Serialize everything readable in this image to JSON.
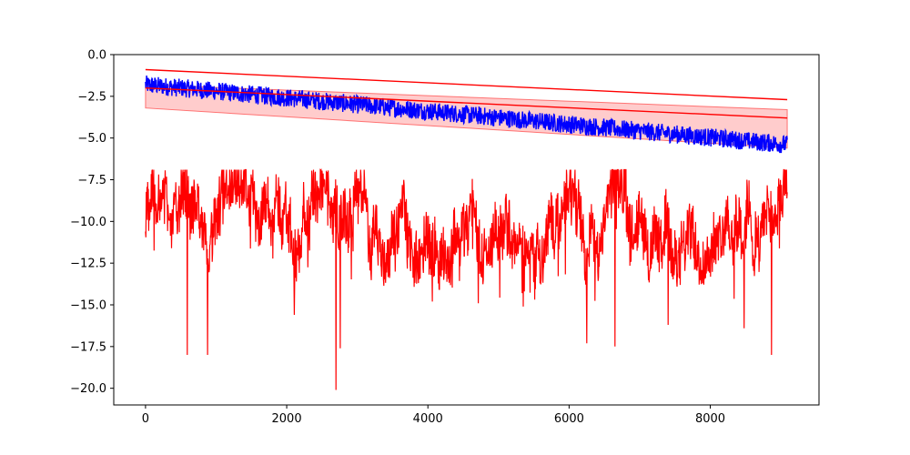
{
  "chart_data": {
    "type": "line",
    "title": "",
    "xlabel": "",
    "ylabel": "",
    "xlim": [
      -450,
      9540
    ],
    "ylim": [
      -21,
      0
    ],
    "x_ticks": [
      0,
      2000,
      4000,
      6000,
      8000
    ],
    "y_ticks": [
      0.0,
      -2.5,
      -5.0,
      -7.5,
      -10.0,
      -12.5,
      -15.0,
      -17.5,
      -20.0
    ],
    "x_tick_labels": [
      "0",
      "2000",
      "4000",
      "6000",
      "8000"
    ],
    "y_tick_labels": [
      "0.0",
      "−2.5",
      "−5.0",
      "−7.5",
      "−10.0",
      "−12.5",
      "−15.0",
      "−17.5",
      "−20.0"
    ],
    "grid": false,
    "series": [
      {
        "kind": "noisy-line",
        "color": "#0000ff",
        "n_points": 9090,
        "x_start": 0,
        "x_end": 9090,
        "trend_start": -1.8,
        "trend_end": -5.4,
        "noise_amplitude": 0.55
      },
      {
        "kind": "noisy-line",
        "color": "#ff0000",
        "n_points": 9090,
        "x_start": 0,
        "x_end": 9090,
        "baseline": -10.0,
        "range": [
          -13.0,
          -7.0
        ],
        "spikes": [
          {
            "x": 590,
            "y": -18.0
          },
          {
            "x": 880,
            "y": -18.0
          },
          {
            "x": 2700,
            "y": -20.1
          },
          {
            "x": 2760,
            "y": -17.6
          },
          {
            "x": 6250,
            "y": -17.3
          },
          {
            "x": 6650,
            "y": -17.5
          },
          {
            "x": 7400,
            "y": -16.2
          },
          {
            "x": 8480,
            "y": -16.4
          },
          {
            "x": 8870,
            "y": -18.0
          }
        ]
      },
      {
        "kind": "line",
        "color": "#ff0000",
        "x": [
          0,
          9090
        ],
        "y": [
          -0.9,
          -2.7
        ]
      },
      {
        "kind": "line",
        "color": "#ff0000",
        "x": [
          0,
          9090
        ],
        "y": [
          -2.0,
          -3.8
        ]
      },
      {
        "kind": "band",
        "color": "#ff0000",
        "opacity": 0.2,
        "x": [
          0,
          9090
        ],
        "y_upper": [
          -1.8,
          -3.3
        ],
        "y_lower": [
          -3.2,
          -5.6
        ]
      }
    ]
  }
}
